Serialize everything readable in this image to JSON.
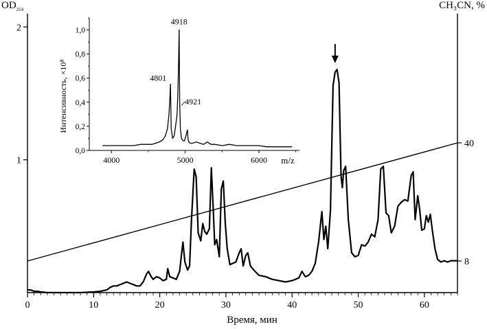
{
  "chart_data": [
    {
      "type": "line",
      "title": "",
      "left_axis": {
        "label_main": "OD",
        "label_sub": "214",
        "ticks": [
          {
            "value": 1,
            "label": "1"
          },
          {
            "value": 2,
            "label": "2"
          }
        ],
        "ylim": [
          0,
          2.1
        ]
      },
      "right_axis": {
        "label": "CH₃CN, %",
        "ticks": [
          {
            "value": 8,
            "label": "8"
          },
          {
            "value": 40,
            "label": "40"
          }
        ]
      },
      "x_axis": {
        "label": "Время, мин",
        "xlim": [
          0,
          65
        ],
        "ticks": [
          0,
          10,
          20,
          30,
          40,
          50,
          60
        ]
      },
      "annotation": {
        "type": "arrow",
        "x": 46.5,
        "note": "peak of interest"
      },
      "series": [
        {
          "kind": "absorbance",
          "x": [
            0,
            0.5,
            1,
            1.5,
            2,
            3,
            5,
            8,
            10,
            11,
            12,
            12.5,
            13,
            13.5,
            14,
            14.5,
            15,
            15.5,
            16,
            16.5,
            17,
            17.5,
            18,
            18.3,
            18.7,
            19,
            19.5,
            20,
            20.5,
            21,
            21.2,
            21.5,
            22,
            22.5,
            23,
            23.5,
            23.8,
            24.2,
            24.5,
            24.8,
            25.2,
            25.5,
            25.8,
            26.2,
            26.5,
            26.8,
            27.1,
            27.5,
            27.8,
            28.1,
            28.3,
            28.6,
            29,
            29.3,
            29.6,
            29.9,
            30.2,
            30.6,
            31,
            31.5,
            32,
            32.3,
            32.6,
            33,
            33.3,
            33.7,
            34.2,
            35,
            36,
            37,
            38,
            39,
            40,
            41,
            41.5,
            42,
            42.5,
            43,
            43.5,
            44,
            44.5,
            44.8,
            45.1,
            45.4,
            45.8,
            46.2,
            46.5,
            46.8,
            47.1,
            47.4,
            47.6,
            47.8,
            48.1,
            48.5,
            49,
            49.5,
            50,
            50.5,
            51,
            51.5,
            52,
            52.5,
            53,
            53.4,
            53.8,
            54.2,
            54.6,
            55,
            55.5,
            56,
            56.5,
            57,
            57.5,
            58,
            58.3,
            58.6,
            59,
            59.3,
            59.6,
            60,
            60.3,
            60.6,
            60.9,
            61.2,
            61.6,
            62,
            62.5,
            63,
            63.5,
            64,
            65
          ],
          "y": [
            0.02,
            0.02,
            0.01,
            0.01,
            0.005,
            0.0,
            0.0,
            0.0,
            0.005,
            0.01,
            0.02,
            0.04,
            0.05,
            0.05,
            0.06,
            0.07,
            0.08,
            0.07,
            0.06,
            0.05,
            0.05,
            0.08,
            0.14,
            0.16,
            0.12,
            0.1,
            0.12,
            0.11,
            0.09,
            0.1,
            0.18,
            0.12,
            0.11,
            0.1,
            0.16,
            0.38,
            0.23,
            0.17,
            0.2,
            0.55,
            0.93,
            0.87,
            0.45,
            0.39,
            0.52,
            0.46,
            0.44,
            0.48,
            0.94,
            0.61,
            0.36,
            0.4,
            0.27,
            0.78,
            0.84,
            0.52,
            0.33,
            0.21,
            0.22,
            0.23,
            0.3,
            0.33,
            0.2,
            0.28,
            0.3,
            0.2,
            0.17,
            0.13,
            0.12,
            0.1,
            0.09,
            0.08,
            0.09,
            0.11,
            0.16,
            0.12,
            0.13,
            0.16,
            0.22,
            0.38,
            0.61,
            0.4,
            0.5,
            0.33,
            0.62,
            1.56,
            1.66,
            1.68,
            1.58,
            0.88,
            0.79,
            0.92,
            0.95,
            0.55,
            0.3,
            0.27,
            0.28,
            0.36,
            0.35,
            0.38,
            0.44,
            0.42,
            0.55,
            0.93,
            0.95,
            0.6,
            0.58,
            0.45,
            0.5,
            0.65,
            0.68,
            0.7,
            0.69,
            0.88,
            0.91,
            0.55,
            0.73,
            0.62,
            0.47,
            0.48,
            0.58,
            0.53,
            0.59,
            0.47,
            0.33,
            0.25,
            0.23,
            0.24,
            0.23,
            0.24,
            0.24
          ]
        },
        {
          "kind": "acetonitrile_gradient",
          "x": [
            0,
            65
          ],
          "y_percent": [
            8,
            40
          ]
        }
      ]
    },
    {
      "type": "line",
      "title": "",
      "inset": true,
      "ylabel": "Интенсивность, ×10⁸",
      "xlabel": "m/z",
      "ylim": [
        0,
        1.1
      ],
      "xlim": [
        3700,
        6550
      ],
      "y_ticks": [
        "0,0",
        "0,2",
        "0,4",
        "0,6",
        "0,8",
        "1,0"
      ],
      "y_tick_values": [
        0,
        0.2,
        0.4,
        0.6,
        0.8,
        1.0
      ],
      "x_ticks": [
        4000,
        5000,
        6000
      ],
      "peak_labels": [
        {
          "mz": 4918,
          "text": "4918",
          "intensity": 1.0
        },
        {
          "mz": 4801,
          "text": "4801",
          "intensity": 0.55
        },
        {
          "mz": 4921,
          "text": "4921",
          "intensity": 0.36
        }
      ],
      "series": [
        {
          "x": [
            3880,
            3950,
            4000,
            4100,
            4200,
            4300,
            4400,
            4500,
            4550,
            4600,
            4650,
            4700,
            4730,
            4760,
            4780,
            4790,
            4801,
            4810,
            4830,
            4850,
            4870,
            4890,
            4900,
            4910,
            4918,
            4926,
            4935,
            4950,
            4970,
            4990,
            5010,
            5030,
            5040,
            5050,
            5070,
            5100,
            5150,
            5200,
            5250,
            5300,
            5350,
            5400,
            5500,
            5600,
            5700,
            5800,
            5900,
            6000,
            6100,
            6200,
            6300,
            6450
          ],
          "y": [
            0.04,
            0.04,
            0.04,
            0.04,
            0.04,
            0.04,
            0.05,
            0.05,
            0.05,
            0.06,
            0.07,
            0.09,
            0.12,
            0.18,
            0.3,
            0.4,
            0.55,
            0.18,
            0.1,
            0.12,
            0.2,
            0.3,
            0.45,
            0.7,
            1.0,
            0.4,
            0.18,
            0.1,
            0.08,
            0.08,
            0.12,
            0.17,
            0.09,
            0.07,
            0.06,
            0.06,
            0.07,
            0.06,
            0.05,
            0.07,
            0.05,
            0.05,
            0.04,
            0.05,
            0.04,
            0.04,
            0.04,
            0.04,
            0.03,
            0.03,
            0.03,
            0.03
          ]
        }
      ]
    }
  ]
}
